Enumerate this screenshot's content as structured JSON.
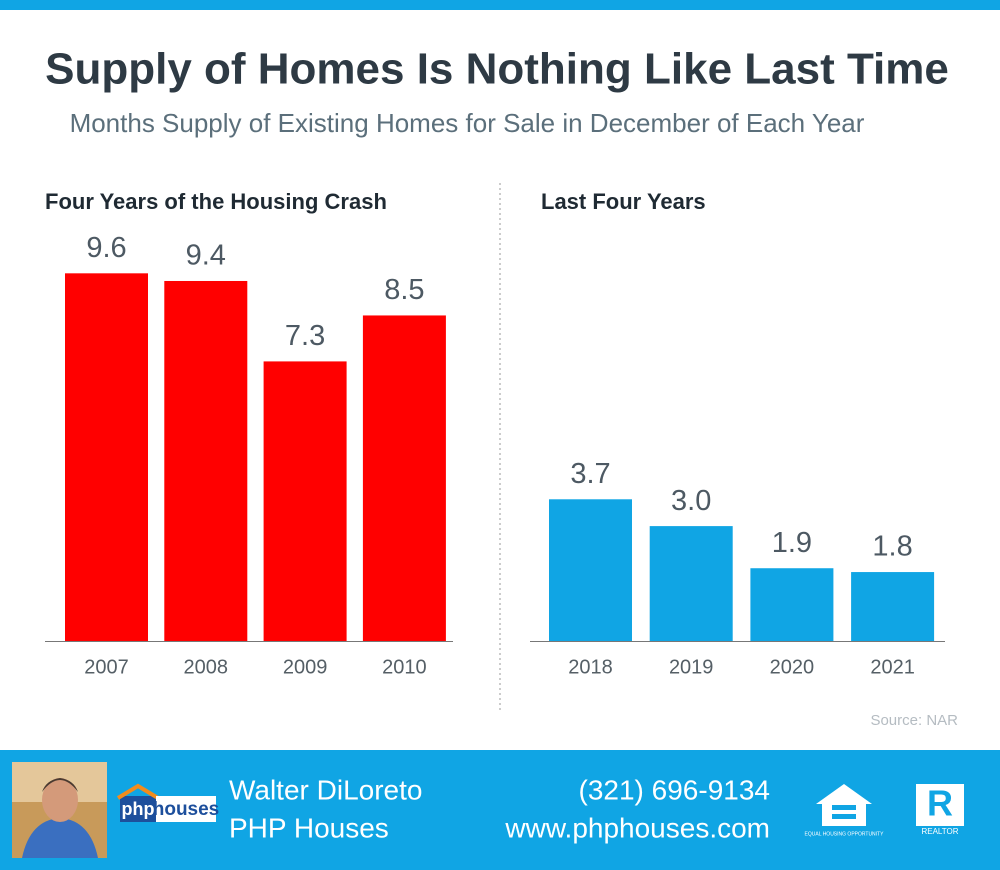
{
  "title": "Supply of Homes Is Nothing Like Last Time",
  "subtitle": "Months Supply of Existing Homes for Sale in December of Each Year",
  "chart_data": [
    {
      "type": "bar",
      "title": "Four Years of the Housing Crash",
      "categories": [
        "2007",
        "2008",
        "2009",
        "2010"
      ],
      "values": [
        9.6,
        9.4,
        7.3,
        8.5
      ],
      "color": "#ff0000"
    },
    {
      "type": "bar",
      "title": "Last Four Years",
      "categories": [
        "2018",
        "2019",
        "2020",
        "2021"
      ],
      "values": [
        3.7,
        3.0,
        1.9,
        1.8
      ],
      "value_labels": [
        "3.7",
        "3.0",
        "1.9",
        "1.8"
      ],
      "color": "#10a5e4"
    }
  ],
  "source": "Source: NAR",
  "footer": {
    "logo_php": "php",
    "logo_houses": "houses",
    "name": "Walter DiLoreto",
    "company": "PHP Houses",
    "phone": "(321) 696-9134",
    "website": "www.phphouses.com",
    "equal_housing": "EQUAL HOUSING OPPORTUNITY",
    "realtor_mark": "R",
    "realtor": "REALTOR"
  }
}
